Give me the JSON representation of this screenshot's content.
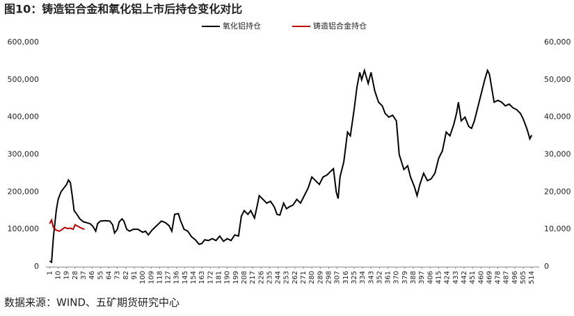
{
  "chart_data": {
    "type": "line",
    "title": "图10：铸造铝合金和氧化铝上市后持仓变化对比",
    "source": "数据来源：WIND、五矿期货研究中心",
    "xlim": [
      -3,
      522
    ],
    "xticks": [
      1,
      10,
      19,
      28,
      37,
      46,
      55,
      64,
      73,
      82,
      91,
      100,
      109,
      118,
      127,
      136,
      145,
      154,
      163,
      172,
      181,
      190,
      199,
      208,
      217,
      226,
      235,
      244,
      253,
      262,
      271,
      280,
      289,
      298,
      307,
      316,
      325,
      334,
      343,
      352,
      361,
      370,
      379,
      388,
      397,
      406,
      415,
      424,
      433,
      442,
      451,
      460,
      469,
      478,
      487,
      496,
      505,
      514
    ],
    "ylim": [
      0,
      600000
    ],
    "yticks": [
      0,
      {
        "value": 100000,
        "label": "100,000"
      },
      {
        "value": 200000,
        "label": "200,000"
      },
      {
        "value": 300000,
        "label": "300,000"
      },
      {
        "value": 400000,
        "label": "400,000"
      },
      {
        "value": 500000,
        "label": "500,000"
      },
      {
        "value": 600000,
        "label": "600,000"
      }
    ],
    "y2lim": [
      0,
      60000
    ],
    "y2ticks": [
      0,
      {
        "value": 10000,
        "label": "10,000"
      },
      {
        "value": 20000,
        "label": "20,000"
      },
      {
        "value": 30000,
        "label": "30,000"
      },
      {
        "value": 40000,
        "label": "40,000"
      },
      {
        "value": 50000,
        "label": "50,000"
      },
      {
        "value": 60000,
        "label": "60,000"
      }
    ],
    "series": [
      {
        "name": "氧化铝持仓",
        "color": "#000000",
        "x": [
          1,
          3,
          5,
          8,
          10,
          13,
          16,
          19,
          21,
          23,
          25,
          27,
          30,
          33,
          37,
          40,
          44,
          47,
          50,
          52,
          55,
          60,
          65,
          68,
          70,
          73,
          75,
          78,
          80,
          83,
          86,
          90,
          95,
          100,
          103,
          106,
          110,
          115,
          120,
          124,
          128,
          131,
          134,
          138,
          140,
          144,
          148,
          152,
          156,
          160,
          163,
          166,
          170,
          174,
          178,
          182,
          186,
          190,
          194,
          198,
          202,
          205,
          208,
          212,
          215,
          219,
          222,
          224,
          228,
          232,
          236,
          240,
          243,
          246,
          250,
          253,
          256,
          260,
          264,
          268,
          272,
          276,
          280,
          284,
          288,
          292,
          296,
          300,
          303,
          306,
          308,
          310,
          314,
          318,
          321,
          325,
          328,
          331,
          333,
          336,
          340,
          343,
          347,
          351,
          355,
          358,
          362,
          366,
          370,
          373,
          378,
          382,
          385,
          389,
          392,
          395,
          399,
          403,
          407,
          411,
          415,
          419,
          423,
          427,
          431,
          434,
          436,
          439,
          443,
          447,
          450,
          453,
          457,
          461,
          464,
          467,
          469,
          472,
          474,
          478,
          482,
          486,
          490,
          494,
          498,
          502,
          505,
          508,
          510,
          512,
          514
        ],
        "values": [
          15000,
          12000,
          80000,
          150000,
          180000,
          200000,
          210000,
          220000,
          232000,
          225000,
          190000,
          150000,
          140000,
          128000,
          120000,
          118000,
          115000,
          108000,
          95000,
          115000,
          122000,
          123000,
          122000,
          112000,
          90000,
          100000,
          120000,
          128000,
          122000,
          100000,
          95000,
          100000,
          100000,
          92000,
          95000,
          85000,
          98000,
          110000,
          122000,
          118000,
          110000,
          95000,
          140000,
          142000,
          125000,
          100000,
          95000,
          80000,
          72000,
          60000,
          62000,
          72000,
          70000,
          75000,
          70000,
          82000,
          68000,
          75000,
          70000,
          85000,
          82000,
          135000,
          150000,
          140000,
          150000,
          130000,
          165000,
          190000,
          180000,
          170000,
          175000,
          160000,
          140000,
          138000,
          170000,
          155000,
          160000,
          165000,
          180000,
          170000,
          190000,
          210000,
          240000,
          230000,
          220000,
          240000,
          245000,
          255000,
          262000,
          200000,
          182000,
          240000,
          280000,
          360000,
          350000,
          420000,
          480000,
          520000,
          500000,
          525000,
          490000,
          520000,
          470000,
          440000,
          430000,
          410000,
          400000,
          405000,
          390000,
          300000,
          260000,
          270000,
          240000,
          215000,
          190000,
          220000,
          250000,
          230000,
          235000,
          250000,
          290000,
          310000,
          360000,
          350000,
          380000,
          410000,
          440000,
          390000,
          400000,
          375000,
          370000,
          390000,
          430000,
          470000,
          500000,
          525000,
          515000,
          470000,
          440000,
          445000,
          440000,
          430000,
          435000,
          425000,
          420000,
          410000,
          395000,
          375000,
          360000,
          342000,
          352000
        ]
      },
      {
        "name": "铸造铝合金持仓",
        "color": "#c00000",
        "axis": "y2",
        "x": [
          1,
          3,
          5,
          8,
          11,
          14,
          17,
          20,
          23,
          26,
          28,
          31,
          34,
          38
        ],
        "values": [
          11500,
          12500,
          10500,
          9800,
          9500,
          9900,
          10500,
          10200,
          10300,
          10000,
          11200,
          10800,
          10400,
          10000
        ]
      }
    ]
  }
}
